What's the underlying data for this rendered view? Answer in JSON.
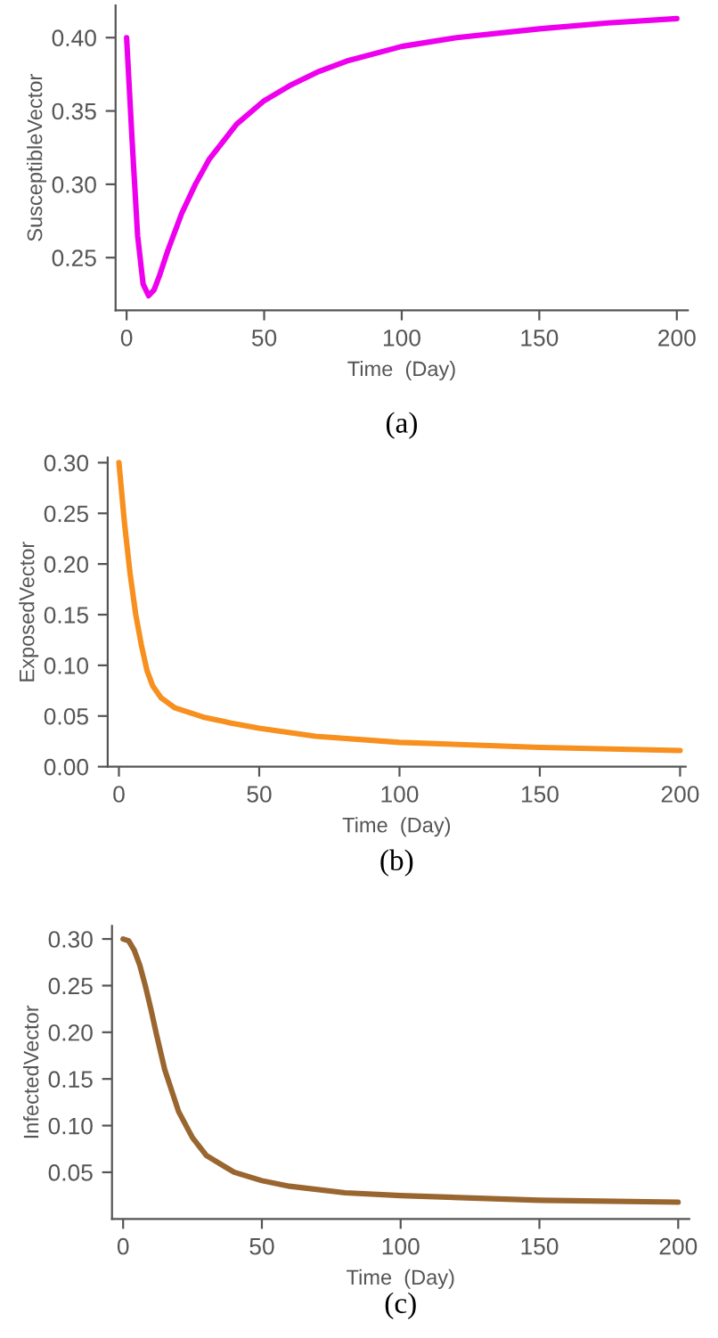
{
  "chart_data": [
    {
      "type": "line",
      "xlabel": "Time  (Day)",
      "ylabel": "SusceptibleVector",
      "annotations": [
        "(a)"
      ],
      "xlim": [
        -4,
        204
      ],
      "ylim": [
        0.214,
        0.422
      ],
      "xticks": [
        0,
        50,
        100,
        150,
        200
      ],
      "yticks": [
        {
          "value": 0.25,
          "label": "0.25"
        },
        {
          "value": 0.3,
          "label": "0.30"
        },
        {
          "value": 0.35,
          "label": "0.35"
        },
        {
          "value": 0.4,
          "label": "0.40"
        }
      ],
      "grid": false,
      "marker": "none",
      "line_style": "solid",
      "series": [
        {
          "color": "#ee00ee",
          "x": [
            0,
            2,
            4,
            6,
            8,
            10,
            12,
            15,
            20,
            25,
            30,
            40,
            50,
            60,
            70,
            80,
            100,
            120,
            150,
            175,
            200
          ],
          "values": [
            0.4,
            0.33,
            0.265,
            0.232,
            0.224,
            0.228,
            0.238,
            0.255,
            0.28,
            0.3,
            0.317,
            0.341,
            0.357,
            0.368,
            0.377,
            0.384,
            0.394,
            0.4,
            0.406,
            0.41,
            0.413
          ]
        }
      ]
    },
    {
      "type": "line",
      "xlabel": "Time  (Day)",
      "ylabel": "ExposedVector",
      "annotations": [
        "(b)"
      ],
      "xlim": [
        -4,
        202
      ],
      "ylim": [
        0,
        0.305
      ],
      "xticks": [
        0,
        50,
        100,
        150,
        200
      ],
      "yticks": [
        {
          "value": 0,
          "label": "0.00"
        },
        {
          "value": 0.05,
          "label": "0.05"
        },
        {
          "value": 0.1,
          "label": "0.10"
        },
        {
          "value": 0.15,
          "label": "0.15"
        },
        {
          "value": 0.2,
          "label": "0.20"
        },
        {
          "value": 0.25,
          "label": "0.25"
        },
        {
          "value": 0.3,
          "label": "0.30"
        }
      ],
      "grid": false,
      "marker": "none",
      "line_style": "solid",
      "series": [
        {
          "color": "#f7901e",
          "x": [
            0,
            2,
            4,
            6,
            8,
            10,
            12,
            15,
            20,
            30,
            40,
            50,
            70,
            100,
            150,
            200
          ],
          "values": [
            0.3,
            0.24,
            0.19,
            0.15,
            0.12,
            0.095,
            0.08,
            0.068,
            0.058,
            0.049,
            0.043,
            0.038,
            0.03,
            0.024,
            0.019,
            0.016
          ]
        }
      ]
    },
    {
      "type": "line",
      "xlabel": "Time  (Day)",
      "ylabel": "InfectedVector",
      "annotations": [
        "(c)"
      ],
      "xlim": [
        -4,
        204
      ],
      "ylim": [
        0,
        0.314
      ],
      "xticks": [
        0,
        50,
        100,
        150,
        200
      ],
      "yticks": [
        {
          "value": 0.05,
          "label": "0.05"
        },
        {
          "value": 0.1,
          "label": "0.10"
        },
        {
          "value": 0.15,
          "label": "0.15"
        },
        {
          "value": 0.2,
          "label": "0.20"
        },
        {
          "value": 0.25,
          "label": "0.25"
        },
        {
          "value": 0.3,
          "label": "0.30"
        }
      ],
      "grid": false,
      "marker": "none",
      "line_style": "solid",
      "series": [
        {
          "color": "#9a6630",
          "x": [
            0,
            2,
            4,
            6,
            8,
            10,
            12,
            15,
            20,
            25,
            30,
            40,
            50,
            60,
            80,
            100,
            150,
            200
          ],
          "values": [
            0.3,
            0.298,
            0.288,
            0.272,
            0.25,
            0.225,
            0.198,
            0.16,
            0.115,
            0.087,
            0.068,
            0.05,
            0.041,
            0.035,
            0.028,
            0.025,
            0.02,
            0.018
          ]
        }
      ]
    }
  ]
}
